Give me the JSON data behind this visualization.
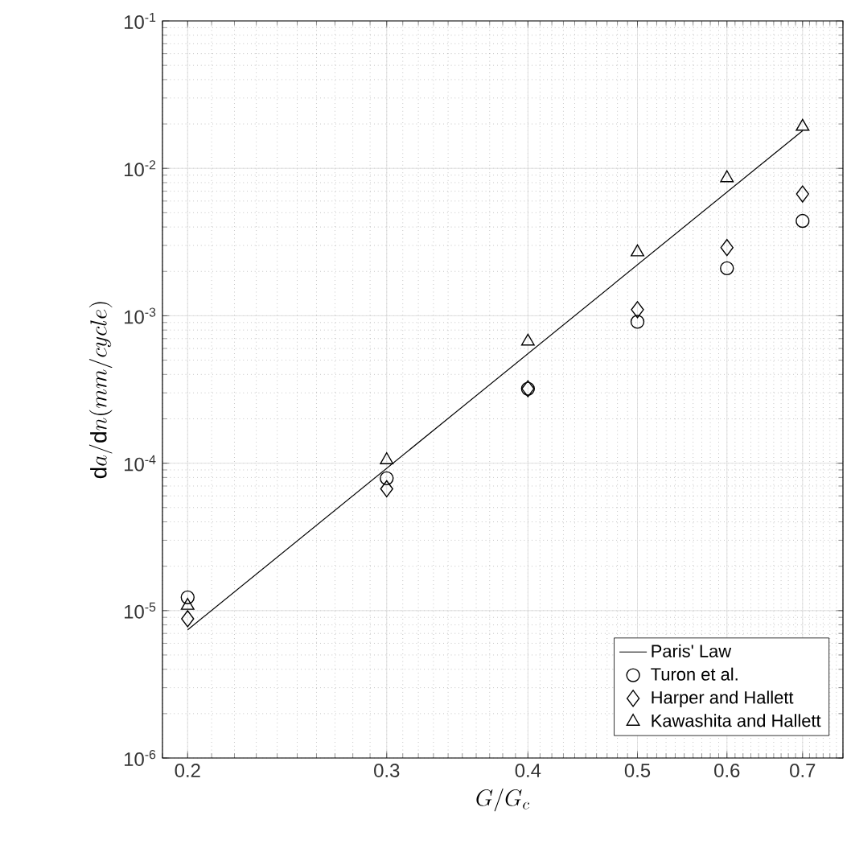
{
  "chart_data": {
    "type": "scatter",
    "xlabel": "G/G_c",
    "ylabel": "\\mathrm{d}a/\\mathrm{d}n(mm/cycle)",
    "log": "xy",
    "grid": true,
    "legend": "bottom right",
    "xlim": [
      0.19,
      0.76
    ],
    "ylim": [
      1e-06,
      0.1
    ],
    "xticks": [
      0.2,
      0.3,
      0.4,
      0.5,
      0.6,
      0.7
    ],
    "yticks": [
      {
        "value": 1e-06,
        "label": "10$^{-6}$"
      },
      {
        "value": 1e-05,
        "label": "10$^{-5}$"
      },
      {
        "value": 0.0001,
        "label": "10$^{-4}$"
      },
      {
        "value": 0.001,
        "label": "10$^{-3}$"
      },
      {
        "value": 0.01,
        "label": "10$^{-2}$"
      },
      {
        "value": 0.1,
        "label": "10$^{-1}$"
      }
    ],
    "series": [
      {
        "name": "Paris' Law",
        "type": "line",
        "marker": "none",
        "line_style": "solid",
        "color": "#000000",
        "x": [
          0.2,
          0.7
        ],
        "values": [
          7.4e-06,
          0.018
        ]
      },
      {
        "name": "Turon et al.",
        "marker": "circle",
        "color": "#000000",
        "x": [
          0.2,
          0.3,
          0.4,
          0.5,
          0.6,
          0.7
        ],
        "values": [
          1.23e-05,
          7.9e-05,
          0.00032,
          0.00091,
          0.0021,
          0.0044
        ]
      },
      {
        "name": "Harper and Hallett",
        "marker": "diamond",
        "color": "#000000",
        "x": [
          0.2,
          0.3,
          0.4,
          0.5,
          0.6,
          0.7
        ],
        "values": [
          8.8e-06,
          6.7e-05,
          0.00032,
          0.0011,
          0.0029,
          0.0067
        ]
      },
      {
        "name": "Kawashita and Hallett",
        "marker": "triangle",
        "color": "#000000",
        "x": [
          0.2,
          0.3,
          0.4,
          0.5,
          0.6,
          0.7
        ],
        "values": [
          1.08e-05,
          0.000105,
          0.00067,
          0.0027,
          0.0086,
          0.0192
        ]
      }
    ]
  }
}
